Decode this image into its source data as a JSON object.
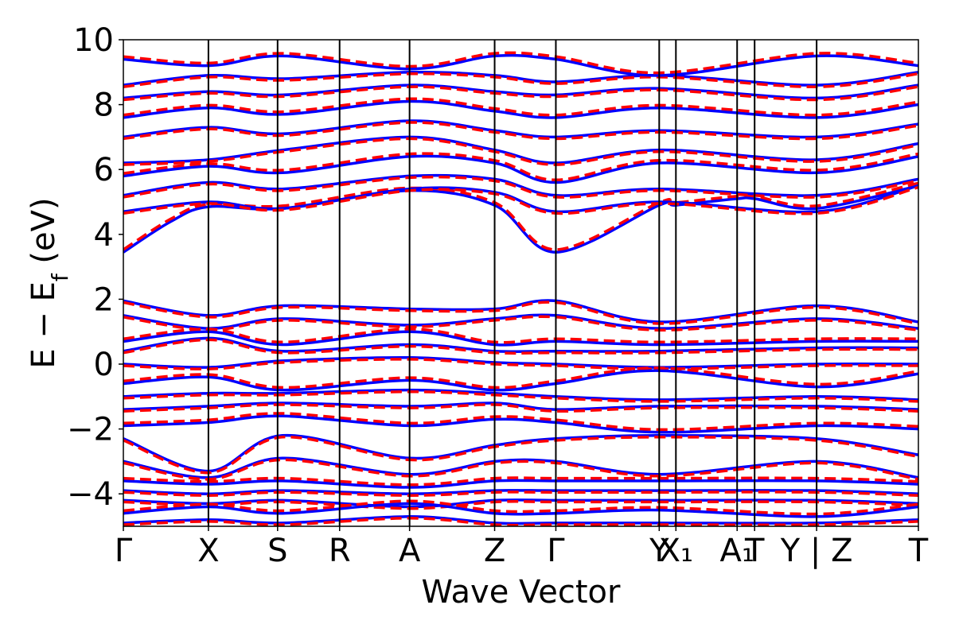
{
  "chart_data": {
    "type": "line",
    "title": "",
    "xlabel": "Wave Vector",
    "ylabel": "E − E_f (eV)",
    "ylabel_main": "E − E",
    "ylabel_sub": "f",
    "ylabel_unit": " (eV)",
    "ylim": [
      -5,
      10
    ],
    "yticks": [
      -4,
      -2,
      0,
      2,
      4,
      6,
      8,
      10
    ],
    "ytick_labels": [
      "−4",
      "−2",
      "0",
      "2",
      "4",
      "6",
      "8",
      "10"
    ],
    "xlim": [
      0,
      1
    ],
    "high_symmetry_points": [
      {
        "label": "Γ",
        "x": 0.0
      },
      {
        "label": "X",
        "x": 0.107
      },
      {
        "label": "S",
        "x": 0.194
      },
      {
        "label": "R",
        "x": 0.272
      },
      {
        "label": "A",
        "x": 0.36
      },
      {
        "label": "Z",
        "x": 0.467
      },
      {
        "label": "Γ",
        "x": 0.544
      },
      {
        "label": "Y",
        "x": 0.674
      },
      {
        "label": "X₁",
        "x": 0.695
      },
      {
        "label": "A₁",
        "x": 0.772
      },
      {
        "label": "T",
        "x": 0.794
      },
      {
        "label": "Y | Z",
        "x": 0.872
      },
      {
        "label": "T",
        "x": 1.0
      }
    ],
    "series": [
      {
        "style": "solid",
        "color": "#0000ff"
      },
      {
        "style": "dashed",
        "color": "#ff0000"
      }
    ],
    "bands": [
      {
        "k": [
          0,
          0.06,
          0.107,
          0.2,
          0.36,
          0.467,
          0.544,
          0.674,
          0.695,
          0.772,
          0.794,
          0.872,
          1.0
        ],
        "e": [
          3.45,
          4.4,
          4.85,
          4.8,
          5.35,
          4.9,
          3.45,
          4.9,
          4.9,
          5.1,
          5.1,
          4.8,
          5.5
        ]
      },
      {
        "k": [
          0,
          0.107,
          0.2,
          0.36,
          0.467,
          0.544,
          0.674,
          0.872,
          1.0
        ],
        "e": [
          4.7,
          5.0,
          4.8,
          5.4,
          5.3,
          4.7,
          5.0,
          4.7,
          5.5
        ]
      },
      {
        "k": [
          0,
          0.107,
          0.2,
          0.36,
          0.467,
          0.544,
          0.674,
          0.872,
          1.0
        ],
        "e": [
          5.2,
          5.6,
          5.4,
          5.8,
          5.7,
          5.2,
          5.4,
          5.2,
          5.7
        ]
      },
      {
        "k": [
          0,
          0.107,
          0.2,
          0.36,
          0.467,
          0.544,
          0.674,
          0.872,
          1.0
        ],
        "e": [
          5.8,
          6.1,
          5.9,
          6.4,
          6.2,
          5.6,
          6.2,
          5.9,
          6.4
        ]
      },
      {
        "k": [
          0,
          0.107,
          0.2,
          0.36,
          0.467,
          0.544,
          0.674,
          0.872,
          1.0
        ],
        "e": [
          6.2,
          6.3,
          6.6,
          7.0,
          6.6,
          6.2,
          6.6,
          6.3,
          6.8
        ]
      },
      {
        "k": [
          0,
          0.107,
          0.2,
          0.36,
          0.467,
          0.544,
          0.674,
          0.872,
          1.0
        ],
        "e": [
          7.0,
          7.3,
          7.1,
          7.5,
          7.2,
          7.0,
          7.2,
          7.0,
          7.4
        ]
      },
      {
        "k": [
          0,
          0.107,
          0.2,
          0.36,
          0.467,
          0.544,
          0.674,
          0.872,
          1.0
        ],
        "e": [
          7.6,
          7.9,
          7.7,
          8.1,
          7.8,
          7.6,
          7.9,
          7.6,
          8.0
        ]
      },
      {
        "k": [
          0,
          0.107,
          0.2,
          0.36,
          0.467,
          0.544,
          0.674,
          0.872,
          1.0
        ],
        "e": [
          8.2,
          8.4,
          8.3,
          8.6,
          8.4,
          8.3,
          8.5,
          8.2,
          8.6
        ]
      },
      {
        "k": [
          0,
          0.107,
          0.2,
          0.36,
          0.467,
          0.544,
          0.674,
          0.872,
          1.0
        ],
        "e": [
          8.6,
          8.9,
          8.8,
          9.0,
          8.9,
          8.7,
          8.9,
          8.6,
          9.0
        ]
      },
      {
        "k": [
          0,
          0.107,
          0.2,
          0.36,
          0.467,
          0.544,
          0.674,
          0.872,
          1.0
        ],
        "e": [
          9.4,
          9.2,
          9.5,
          9.1,
          9.5,
          9.4,
          8.9,
          9.5,
          9.2
        ]
      },
      {
        "k": [
          0,
          0.107,
          0.2,
          0.36,
          0.467,
          0.544,
          0.674,
          0.872,
          1.0
        ],
        "e": [
          1.95,
          1.5,
          1.8,
          1.7,
          1.7,
          1.95,
          1.3,
          1.8,
          1.3
        ]
      },
      {
        "k": [
          0,
          0.107,
          0.2,
          0.36,
          0.467,
          0.544,
          0.674,
          0.872,
          1.0
        ],
        "e": [
          1.5,
          1.1,
          1.4,
          1.2,
          1.4,
          1.5,
          1.1,
          1.4,
          1.1
        ]
      },
      {
        "k": [
          0,
          0.107,
          0.2,
          0.36,
          0.467,
          0.544,
          0.674,
          0.872,
          1.0
        ],
        "e": [
          0.7,
          1.0,
          0.6,
          1.0,
          0.6,
          0.7,
          0.6,
          0.7,
          0.7
        ]
      },
      {
        "k": [
          0,
          0.107,
          0.2,
          0.36,
          0.467,
          0.544,
          0.674,
          0.872,
          1.0
        ],
        "e": [
          0.4,
          0.8,
          0.4,
          0.6,
          0.4,
          0.4,
          0.4,
          0.5,
          0.5
        ]
      },
      {
        "k": [
          0,
          0.107,
          0.2,
          0.36,
          0.467,
          0.544,
          0.674,
          0.872,
          1.0
        ],
        "e": [
          0.0,
          -0.1,
          0.1,
          0.2,
          0.05,
          0.0,
          -0.1,
          0.0,
          0.0
        ]
      },
      {
        "k": [
          0,
          0.107,
          0.2,
          0.36,
          0.467,
          0.544,
          0.674,
          0.872,
          1.0
        ],
        "e": [
          -0.6,
          -0.4,
          -0.8,
          -0.5,
          -0.8,
          -0.6,
          -0.2,
          -0.7,
          -0.3
        ]
      },
      {
        "k": [
          0,
          0.107,
          0.2,
          0.36,
          0.467,
          0.544,
          0.674,
          0.872,
          1.0
        ],
        "e": [
          -1.0,
          -0.9,
          -0.9,
          -0.8,
          -0.9,
          -1.0,
          -1.1,
          -1.0,
          -1.1
        ]
      },
      {
        "k": [
          0,
          0.107,
          0.2,
          0.36,
          0.467,
          0.544,
          0.674,
          0.872,
          1.0
        ],
        "e": [
          -1.4,
          -1.3,
          -1.2,
          -1.3,
          -1.2,
          -1.4,
          -1.3,
          -1.3,
          -1.4
        ]
      },
      {
        "k": [
          0,
          0.107,
          0.2,
          0.36,
          0.467,
          0.544,
          0.674,
          0.872,
          1.0
        ],
        "e": [
          -1.9,
          -1.8,
          -1.6,
          -1.9,
          -1.7,
          -1.8,
          -2.1,
          -1.9,
          -2.0
        ]
      },
      {
        "k": [
          0,
          0.107,
          0.2,
          0.36,
          0.467,
          0.544,
          0.674,
          0.872,
          1.0
        ],
        "e": [
          -2.3,
          -3.3,
          -2.2,
          -2.9,
          -2.5,
          -2.3,
          -2.2,
          -2.3,
          -2.8
        ]
      },
      {
        "k": [
          0,
          0.107,
          0.2,
          0.36,
          0.467,
          0.544,
          0.674,
          0.872,
          1.0
        ],
        "e": [
          -3.0,
          -3.5,
          -2.9,
          -3.4,
          -3.0,
          -3.0,
          -3.4,
          -3.0,
          -3.5
        ]
      },
      {
        "k": [
          0,
          0.107,
          0.2,
          0.36,
          0.467,
          0.544,
          0.674,
          0.872,
          1.0
        ],
        "e": [
          -3.6,
          -3.7,
          -3.6,
          -3.8,
          -3.6,
          -3.6,
          -3.6,
          -3.6,
          -3.7
        ]
      },
      {
        "k": [
          0,
          0.107,
          0.2,
          0.36,
          0.467,
          0.544,
          0.674,
          0.872,
          1.0
        ],
        "e": [
          -3.9,
          -4.0,
          -3.9,
          -4.0,
          -3.9,
          -3.9,
          -3.9,
          -3.9,
          -4.0
        ]
      },
      {
        "k": [
          0,
          0.107,
          0.2,
          0.36,
          0.467,
          0.544,
          0.674,
          0.872,
          1.0
        ],
        "e": [
          -4.2,
          -4.3,
          -4.2,
          -4.4,
          -4.2,
          -4.2,
          -4.2,
          -4.2,
          -4.3
        ]
      },
      {
        "k": [
          0,
          0.107,
          0.2,
          0.36,
          0.467,
          0.544,
          0.674,
          0.872,
          1.0
        ],
        "e": [
          -4.6,
          -4.4,
          -4.6,
          -4.3,
          -4.6,
          -4.6,
          -4.5,
          -4.7,
          -4.4
        ]
      },
      {
        "k": [
          0,
          0.107,
          0.2,
          0.36,
          0.467,
          0.544,
          0.674,
          0.872,
          1.0
        ],
        "e": [
          -4.9,
          -4.8,
          -4.9,
          -4.7,
          -4.9,
          -4.9,
          -4.9,
          -4.9,
          -4.8
        ]
      }
    ],
    "grid": false
  }
}
